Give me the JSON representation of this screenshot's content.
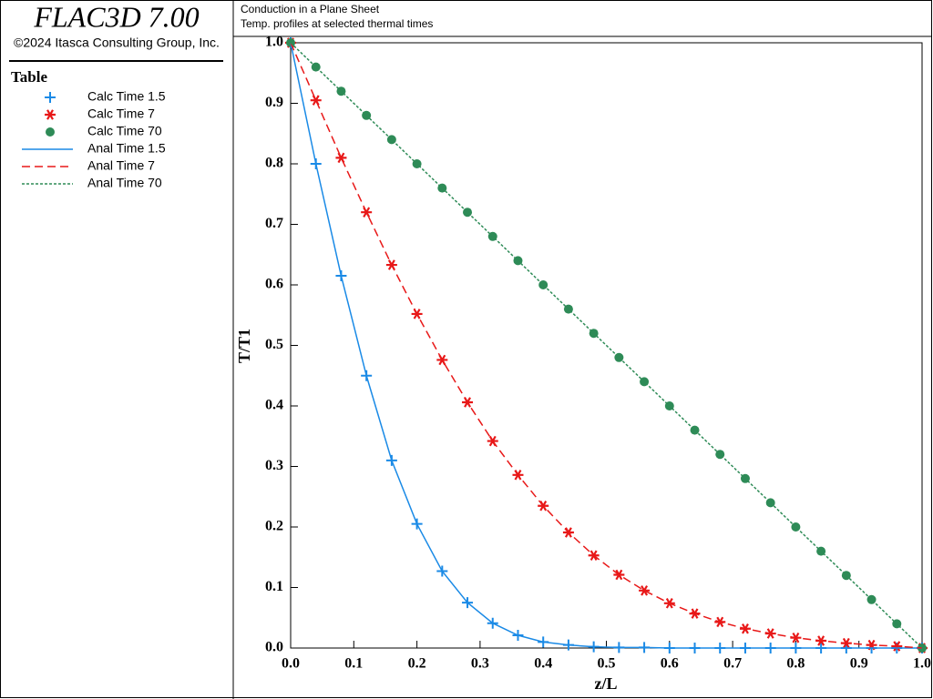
{
  "app": {
    "title": "FLAC3D 7.00",
    "copyright": "©2024 Itasca Consulting Group, Inc."
  },
  "chart_data": {
    "type": "line",
    "title": "Conduction in a Plane Sheet",
    "subtitle": "Temp. profiles at selected thermal times",
    "legend_title": "Table",
    "x_label": "z/L",
    "y_label": "T/T1",
    "x": [
      0,
      0.04,
      0.08,
      0.12,
      0.16,
      0.2,
      0.24,
      0.28,
      0.32,
      0.36,
      0.4,
      0.44,
      0.48,
      0.52,
      0.56,
      0.6,
      0.64,
      0.68,
      0.72,
      0.76,
      0.8,
      0.84,
      0.88,
      0.92,
      0.96,
      1.0
    ],
    "series": [
      {
        "name": "Calc Time 1.5",
        "color": "#1a8ae6",
        "marker": "plus",
        "values": [
          1.0,
          0.8,
          0.615,
          0.45,
          0.31,
          0.205,
          0.127,
          0.075,
          0.041,
          0.021,
          0.01,
          0.005,
          0.002,
          0.001,
          0.001,
          0,
          0,
          0,
          0,
          0,
          0,
          0,
          0,
          0,
          0,
          0
        ]
      },
      {
        "name": "Calc Time 7",
        "color": "#e81818",
        "marker": "star",
        "values": [
          1.0,
          0.905,
          0.81,
          0.72,
          0.633,
          0.552,
          0.476,
          0.406,
          0.342,
          0.286,
          0.235,
          0.191,
          0.153,
          0.121,
          0.095,
          0.074,
          0.057,
          0.043,
          0.032,
          0.024,
          0.017,
          0.012,
          0.008,
          0.005,
          0.003,
          0
        ]
      },
      {
        "name": "Calc Time 70",
        "color": "#2e8b57",
        "marker": "dot",
        "values": [
          1.0,
          0.96,
          0.92,
          0.88,
          0.84,
          0.8,
          0.76,
          0.72,
          0.68,
          0.64,
          0.6,
          0.56,
          0.52,
          0.48,
          0.44,
          0.4,
          0.36,
          0.32,
          0.28,
          0.24,
          0.2,
          0.16,
          0.12,
          0.08,
          0.04,
          0
        ]
      },
      {
        "name": "Anal Time 1.5",
        "color": "#1a8ae6",
        "dash": "solid",
        "values": [
          1.0,
          0.8,
          0.615,
          0.45,
          0.31,
          0.205,
          0.127,
          0.075,
          0.041,
          0.021,
          0.01,
          0.005,
          0.002,
          0.001,
          0.001,
          0,
          0,
          0,
          0,
          0,
          0,
          0,
          0,
          0,
          0,
          0
        ]
      },
      {
        "name": "Anal Time 7",
        "color": "#e81818",
        "dash": "dashed",
        "values": [
          1.0,
          0.905,
          0.81,
          0.72,
          0.633,
          0.552,
          0.476,
          0.406,
          0.342,
          0.286,
          0.235,
          0.191,
          0.153,
          0.121,
          0.095,
          0.074,
          0.057,
          0.043,
          0.032,
          0.024,
          0.017,
          0.012,
          0.008,
          0.005,
          0.003,
          0
        ]
      },
      {
        "name": "Anal Time 70",
        "color": "#2e8b57",
        "dash": "dotted",
        "values": [
          1.0,
          0.96,
          0.92,
          0.88,
          0.84,
          0.8,
          0.76,
          0.72,
          0.68,
          0.64,
          0.6,
          0.56,
          0.52,
          0.48,
          0.44,
          0.4,
          0.36,
          0.32,
          0.28,
          0.24,
          0.2,
          0.16,
          0.12,
          0.08,
          0.04,
          0
        ]
      }
    ],
    "xlim": [
      0,
      1.0
    ],
    "ylim": [
      0,
      1.0
    ],
    "xticks": [
      {
        "value": 0,
        "label": "0.0"
      },
      0.1,
      0.2,
      0.3,
      0.4,
      0.5,
      0.6,
      0.7,
      0.8,
      0.9,
      {
        "value": 1.0,
        "label": "1.0"
      }
    ],
    "yticks": [
      {
        "value": 0,
        "label": "0.0"
      },
      0.1,
      0.2,
      0.3,
      0.4,
      0.5,
      0.6,
      0.7,
      0.8,
      0.9,
      {
        "value": 1.0,
        "label": "1.0"
      }
    ],
    "grid": false
  }
}
